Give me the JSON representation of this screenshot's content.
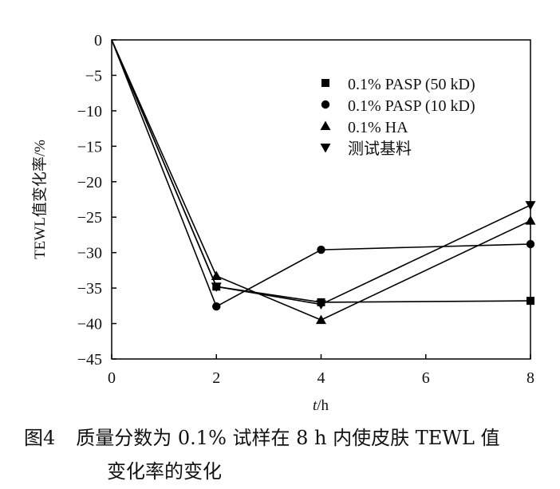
{
  "chart_data": {
    "type": "line",
    "x": [
      0,
      2,
      4,
      8
    ],
    "xticks": [
      0,
      2,
      4,
      6,
      8
    ],
    "yticks": [
      0,
      -5,
      -10,
      -15,
      -20,
      -25,
      -30,
      -35,
      -40,
      -45
    ],
    "xlim": [
      0,
      8
    ],
    "ylim": [
      -45,
      0
    ],
    "xlabel_italic": "t",
    "xlabel_unit": "/h",
    "ylabel": "TEWL值变化率/%",
    "legend_position": "top-right",
    "series": [
      {
        "name": "0.1% PASP (50 kD)",
        "marker": "square",
        "values": [
          0,
          -34.8,
          -37.0,
          -36.8
        ]
      },
      {
        "name": "0.1% PASP (10 kD)",
        "marker": "circle",
        "values": [
          0,
          -37.6,
          -29.6,
          -28.8
        ]
      },
      {
        "name": "0.1% HA",
        "marker": "triangle-up",
        "values": [
          0,
          -33.3,
          -39.5,
          -25.5
        ]
      },
      {
        "name": "测试基料",
        "marker": "triangle-down",
        "values": [
          0,
          -34.8,
          -37.3,
          -23.3
        ]
      }
    ]
  },
  "caption": {
    "number": "图4",
    "line1": "质量分数为 0.1% 试样在 8 h 内使皮肤 TEWL 值",
    "line2": "变化率的变化"
  }
}
